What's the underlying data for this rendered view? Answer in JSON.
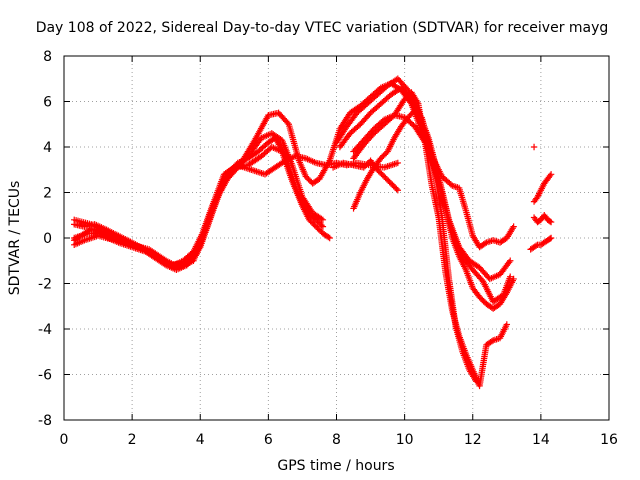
{
  "chart_data": {
    "type": "scatter",
    "title": "Day 108 of 2022, Sidereal Day-to-day VTEC variation (SDTVAR) for receiver mayg",
    "xlabel": "GPS time / hours",
    "ylabel": "SDTVAR / TECUs",
    "xlim": [
      0,
      16
    ],
    "ylim": [
      -8,
      8
    ],
    "xticks": [
      "0",
      "2",
      "4",
      "6",
      "8",
      "10",
      "12",
      "14",
      "16"
    ],
    "yticks": [
      "-8",
      "-6",
      "-4",
      "-2",
      "0",
      "2",
      "4",
      "6",
      "8"
    ],
    "grid": true,
    "marker": "+",
    "color": "#ff0000",
    "series": [
      {
        "x": [
          0.3,
          0.5,
          0.8,
          1.0,
          1.3,
          1.6,
          2.0,
          2.4,
          2.7,
          3.0,
          3.3,
          3.6,
          3.9,
          4.2,
          4.5,
          4.8,
          5.1,
          5.4,
          5.7,
          6.0,
          6.2,
          6.5,
          6.8,
          7.0,
          7.2,
          7.4,
          7.6
        ],
        "y": [
          -0.1,
          0.1,
          0.4,
          0.3,
          0.0,
          -0.2,
          -0.4,
          -0.6,
          -0.9,
          -1.2,
          -1.4,
          -1.2,
          -0.7,
          0.5,
          1.8,
          2.8,
          3.3,
          3.5,
          3.8,
          4.2,
          4.4,
          3.6,
          2.2,
          1.5,
          1.0,
          0.8,
          0.5
        ]
      },
      {
        "x": [
          0.3,
          0.6,
          0.9,
          1.2,
          1.6,
          2.0,
          2.5,
          2.9,
          3.2,
          3.5,
          3.8,
          4.1,
          4.4,
          4.8,
          5.1,
          5.5,
          5.8,
          6.1,
          6.4,
          6.7,
          7.0,
          7.3,
          7.6
        ],
        "y": [
          0.6,
          0.5,
          0.6,
          0.4,
          0.1,
          -0.2,
          -0.6,
          -1.0,
          -1.2,
          -1.0,
          -0.6,
          0.3,
          1.5,
          2.6,
          3.1,
          3.8,
          4.4,
          4.6,
          4.3,
          3.2,
          1.8,
          1.1,
          0.8
        ]
      },
      {
        "x": [
          0.3,
          0.6,
          1.0,
          1.5,
          2.0,
          2.5,
          3.0,
          3.4,
          3.8,
          4.2,
          4.6,
          5.0,
          5.4,
          5.8,
          6.1,
          6.4,
          6.7,
          7.0,
          7.2,
          7.4,
          7.6,
          7.8
        ],
        "y": [
          -0.3,
          -0.1,
          0.1,
          -0.1,
          -0.3,
          -0.5,
          -1.0,
          -1.3,
          -1.0,
          0.5,
          2.2,
          3.1,
          3.2,
          3.6,
          4.0,
          3.8,
          2.5,
          1.4,
          0.8,
          0.5,
          0.2,
          0.0
        ]
      },
      {
        "x": [
          0.3,
          0.7,
          1.2,
          1.7,
          2.2,
          2.7,
          3.1,
          3.5,
          3.9,
          4.3,
          4.7,
          5.1,
          5.5,
          5.9,
          6.2,
          6.5,
          6.8,
          7.1,
          7.4,
          7.7,
          8.0,
          8.3,
          8.6,
          9.0,
          9.4,
          9.8
        ],
        "y": [
          0.0,
          0.2,
          0.2,
          -0.1,
          -0.4,
          -0.8,
          -1.2,
          -1.1,
          -0.5,
          1.2,
          2.8,
          3.2,
          3.0,
          2.8,
          3.1,
          3.4,
          3.6,
          3.5,
          3.3,
          3.2,
          3.3,
          3.2,
          3.3,
          3.2,
          3.1,
          3.3
        ]
      },
      {
        "x": [
          0.3,
          0.8,
          1.3,
          1.8,
          2.3,
          2.8,
          3.2,
          3.6,
          4.0,
          4.4,
          4.8,
          5.2,
          5.6,
          6.0,
          6.3,
          6.6,
          6.9,
          7.1,
          7.3,
          7.5,
          7.8,
          8.1,
          8.4,
          8.7,
          9.0,
          9.3,
          9.6,
          9.9,
          10.2,
          10.5,
          10.8,
          11.1,
          11.4,
          11.6,
          11.8,
          12.0,
          12.2,
          12.4,
          12.6,
          12.8,
          13.0,
          13.2
        ],
        "y": [
          0.8,
          0.6,
          0.2,
          -0.2,
          -0.5,
          -0.9,
          -1.3,
          -1.2,
          -0.4,
          1.3,
          2.9,
          3.3,
          4.3,
          5.4,
          5.5,
          5.0,
          3.4,
          2.7,
          2.4,
          2.6,
          3.4,
          4.8,
          5.5,
          5.8,
          6.2,
          6.6,
          6.8,
          6.5,
          5.9,
          4.7,
          3.6,
          2.7,
          2.3,
          2.2,
          1.2,
          0.1,
          -0.4,
          -0.2,
          -0.1,
          -0.2,
          0.0,
          0.5
        ]
      },
      {
        "x": [
          8.0,
          8.3,
          8.6,
          8.9,
          9.2,
          9.5,
          9.8,
          10.1,
          10.4,
          10.7,
          11.0,
          11.3,
          11.6,
          11.9,
          12.2,
          12.5,
          12.8,
          13.1
        ],
        "y": [
          4.2,
          4.9,
          5.5,
          5.9,
          6.3,
          6.7,
          7.0,
          6.5,
          5.6,
          4.4,
          2.7,
          0.8,
          -0.4,
          -1.0,
          -1.3,
          -1.8,
          -1.6,
          -1.0
        ]
      },
      {
        "x": [
          8.1,
          8.4,
          8.7,
          9.0,
          9.3,
          9.6,
          9.9,
          10.2,
          10.5,
          10.8,
          11.1,
          11.4,
          11.7,
          12.0,
          12.3,
          12.6,
          12.9,
          13.1
        ],
        "y": [
          4.0,
          4.6,
          5.0,
          5.5,
          5.9,
          6.3,
          6.6,
          6.0,
          5.0,
          3.6,
          1.8,
          0.3,
          -0.8,
          -1.4,
          -1.9,
          -2.8,
          -2.5,
          -1.7
        ]
      },
      {
        "x": [
          8.5,
          8.8,
          9.1,
          9.4,
          9.7,
          10.0,
          10.3,
          10.6,
          10.9,
          11.2,
          11.4,
          11.6,
          11.8,
          12.0,
          12.2,
          12.4,
          12.6,
          12.8,
          13.0,
          13.2
        ],
        "y": [
          3.8,
          4.3,
          4.8,
          5.2,
          5.4,
          5.3,
          4.9,
          4.2,
          3.0,
          1.3,
          0.0,
          -0.8,
          -1.4,
          -2.2,
          -2.6,
          -2.9,
          -3.1,
          -2.9,
          -2.4,
          -1.8
        ]
      },
      {
        "x": [
          8.5,
          8.8,
          9.1,
          9.4,
          9.7,
          10.0,
          10.2,
          10.4,
          10.6,
          10.8,
          11.0,
          11.2,
          11.4,
          11.6,
          11.8,
          12.0,
          12.2,
          12.4,
          12.6,
          12.8,
          13.0
        ],
        "y": [
          3.5,
          4.1,
          4.6,
          5.0,
          5.4,
          6.1,
          6.4,
          5.9,
          4.2,
          2.3,
          0.9,
          -1.5,
          -3.2,
          -4.3,
          -5.1,
          -5.8,
          -6.5,
          -4.7,
          -4.5,
          -4.4,
          -3.8
        ]
      },
      {
        "x": [
          8.5,
          8.7,
          8.9,
          9.1,
          9.3,
          9.5,
          9.7,
          9.9,
          10.1,
          10.3,
          10.5,
          10.7,
          10.9,
          11.1,
          11.3,
          11.5,
          11.7,
          11.9,
          12.1
        ],
        "y": [
          1.3,
          2.0,
          2.6,
          3.1,
          3.5,
          3.8,
          4.4,
          4.9,
          5.3,
          5.6,
          5.3,
          4.2,
          2.8,
          0.9,
          -1.8,
          -3.9,
          -5.0,
          -5.8,
          -6.3
        ]
      },
      {
        "x": [
          7.9,
          8.2,
          8.5,
          8.8,
          9.0,
          9.2,
          9.4,
          9.6,
          9.8
        ],
        "y": [
          3.1,
          3.3,
          3.2,
          3.1,
          3.4,
          3.0,
          2.7,
          2.4,
          2.1
        ]
      },
      {
        "x": [
          13.7,
          13.9,
          14.0,
          14.2,
          14.3
        ],
        "y": [
          -0.5,
          -0.3,
          -0.3,
          -0.1,
          0.0
        ]
      },
      {
        "x": [
          13.8,
          13.9,
          14.0,
          14.1,
          14.2,
          14.3
        ],
        "y": [
          1.6,
          1.8,
          2.1,
          2.4,
          2.6,
          2.8
        ]
      },
      {
        "x": [
          13.8,
          13.9,
          14.0,
          14.1,
          14.2,
          14.3
        ],
        "y": [
          0.9,
          0.7,
          0.8,
          1.0,
          0.8,
          0.7
        ]
      },
      {
        "x": [
          13.8
        ],
        "y": [
          4.0
        ]
      }
    ]
  }
}
